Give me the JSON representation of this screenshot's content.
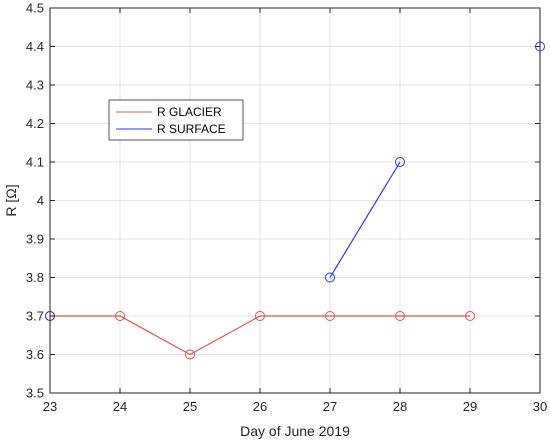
{
  "chart_data": {
    "type": "line",
    "title": "",
    "xlabel": "Day of June 2019",
    "ylabel": "R [Ω]",
    "xlim": [
      23,
      30
    ],
    "ylim": [
      3.5,
      4.5
    ],
    "xticks": [
      23,
      24,
      25,
      26,
      27,
      28,
      29,
      30
    ],
    "yticks": [
      3.5,
      3.6,
      3.7,
      3.8,
      3.9,
      4,
      4.1,
      4.2,
      4.3,
      4.4,
      4.5
    ],
    "xtick_labels": [
      "23",
      "24",
      "25",
      "26",
      "27",
      "28",
      "29",
      "30"
    ],
    "ytick_labels": [
      "3.5",
      "3.6",
      "3.7",
      "3.8",
      "3.9",
      "4",
      "4.1",
      "4.2",
      "4.3",
      "4.4",
      "4.5"
    ],
    "grid": true,
    "legend_position": "upper-left",
    "series": [
      {
        "name": "R GLACIER",
        "color": "#d9534f",
        "marker": "circle",
        "x": [
          23,
          24,
          25,
          26,
          27,
          28,
          29
        ],
        "y": [
          3.7,
          3.7,
          3.6,
          3.7,
          3.7,
          3.7,
          3.7
        ]
      },
      {
        "name": "R SURFACE",
        "color": "#2f3ad6",
        "marker": "circle",
        "x": [
          23,
          27,
          28,
          30
        ],
        "y": [
          3.7,
          3.8,
          4.1,
          4.4
        ],
        "segments": [
          [
            27,
            28
          ]
        ]
      }
    ]
  }
}
